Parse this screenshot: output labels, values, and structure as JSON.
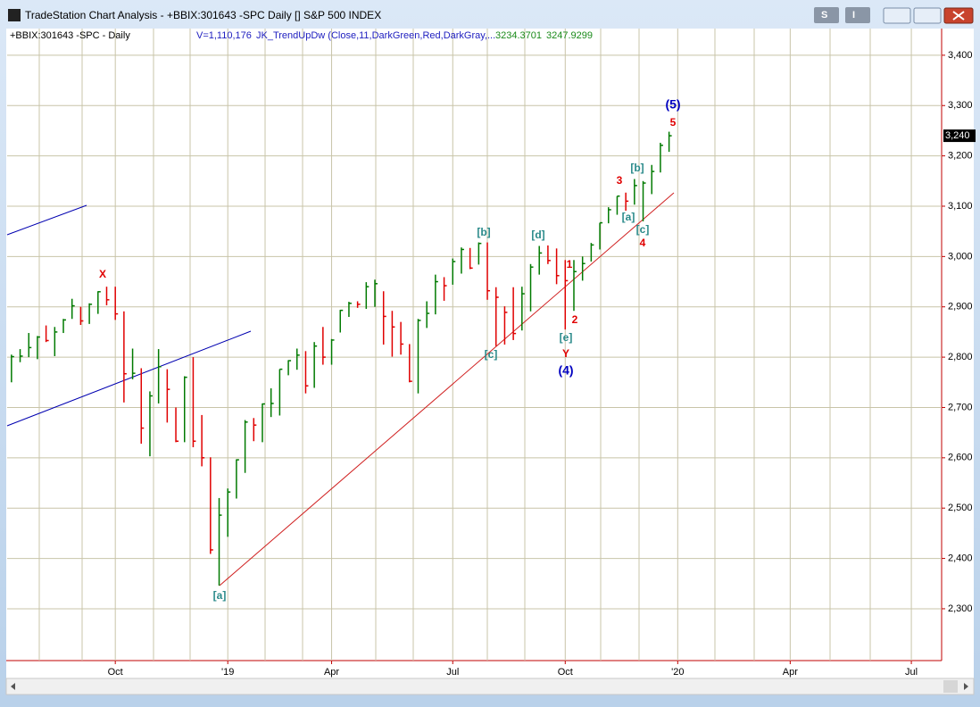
{
  "window": {
    "title": "TradeStation Chart Analysis - +BBIX:301643 -SPC Daily [] S&P 500 INDEX",
    "buttons": [
      "S",
      "I"
    ]
  },
  "chart_data": {
    "type": "hlc",
    "symbol_label": "+BBIX:301643 -SPC - Daily",
    "volume_label": "V=1,110,176",
    "indicator": "JK_TrendUpDw (Close,11,DarkGreen,Red,DarkGray,...",
    "indicator_values": [
      "3234.3701",
      "3247.9299"
    ],
    "up_color": "#007a00",
    "down_color": "#e00000",
    "categories": [
      null,
      null,
      null,
      null,
      null,
      null,
      null,
      null,
      null,
      null,
      null,
      null,
      "Oct",
      null,
      null,
      null,
      null,
      null,
      null,
      null,
      null,
      null,
      null,
      null,
      null,
      "'19",
      null,
      null,
      null,
      null,
      null,
      null,
      null,
      null,
      null,
      null,
      null,
      "Apr",
      null,
      null,
      null,
      null,
      null,
      null,
      null,
      null,
      null,
      null,
      null,
      null,
      null,
      "Jul",
      null,
      null,
      null,
      null,
      null,
      null,
      null,
      null,
      null,
      null,
      null,
      null,
      "Oct",
      null,
      null,
      null,
      null,
      null,
      null,
      null,
      null,
      null,
      null,
      null,
      null,
      "'20",
      null,
      null,
      null,
      null,
      null,
      null,
      null,
      null,
      null,
      null,
      null,
      null,
      "Apr",
      null,
      null,
      null,
      null,
      null,
      null,
      null,
      null,
      null,
      null,
      null,
      null,
      null,
      "Jul",
      null,
      null,
      null
    ],
    "close": [
      2801,
      2802,
      2819,
      2840,
      2833,
      2850,
      2874,
      2902,
      2872,
      2905,
      2930,
      2914,
      2886,
      2767,
      2768,
      2659,
      2723,
      2781,
      2736,
      2633,
      2760,
      2633,
      2600,
      2417,
      2486,
      2532,
      2596,
      2671,
      2665,
      2707,
      2708,
      2776,
      2793,
      2804,
      2743,
      2822,
      2800,
      2834,
      2893,
      2907,
      2905,
      2940,
      2946,
      2881,
      2860,
      2826,
      2752,
      2873,
      2887,
      2950,
      2942,
      2990,
      3014,
      2977,
      3026,
      2932,
      2919,
      2889,
      2847,
      2926,
      2979,
      3007,
      2992,
      2962,
      2952,
      2970,
      2986,
      3023,
      3067,
      3093,
      3120,
      3110,
      3141,
      3146,
      3169,
      3221,
      3240,
      null,
      null,
      null,
      null,
      null,
      null,
      null,
      null,
      null,
      null,
      null,
      null,
      null,
      null,
      null,
      null,
      null,
      null,
      null,
      null,
      null,
      null,
      null,
      null,
      null,
      null,
      null,
      null,
      null,
      null,
      null
    ],
    "high": [
      2805,
      2816,
      2848,
      2842,
      2863,
      2860,
      2876,
      2916,
      2900,
      2907,
      2931,
      2940,
      2940,
      2891,
      2817,
      2778,
      2732,
      2816,
      2776,
      2700,
      2762,
      2800,
      2685,
      2601,
      2520,
      2539,
      2597,
      2675,
      2679,
      2708,
      2738,
      2776,
      2794,
      2817,
      2812,
      2830,
      2860,
      2836,
      2894,
      2910,
      2911,
      2949,
      2954,
      2931,
      2892,
      2870,
      2826,
      2876,
      2911,
      2964,
      2959,
      2996,
      3018,
      3017,
      3028,
      3028,
      2939,
      2901,
      2939,
      2940,
      2985,
      3021,
      3022,
      3016,
      2993,
      2993,
      3000,
      3027,
      3067,
      3098,
      3120,
      3127,
      3154,
      3150,
      3182,
      3226,
      3248,
      null,
      null,
      null,
      null,
      null,
      null,
      null,
      null,
      null,
      null,
      null,
      null,
      null,
      null,
      null,
      null,
      null,
      null,
      null,
      null,
      null,
      null,
      null,
      null,
      null,
      null,
      null,
      null,
      null,
      null,
      null
    ],
    "low": [
      2750,
      2790,
      2800,
      2796,
      2830,
      2802,
      2848,
      2876,
      2864,
      2866,
      2886,
      2903,
      2874,
      2710,
      2756,
      2628,
      2603,
      2708,
      2670,
      2631,
      2631,
      2621,
      2583,
      2409,
      2346,
      2443,
      2519,
      2570,
      2633,
      2631,
      2681,
      2684,
      2764,
      2775,
      2728,
      2739,
      2785,
      2785,
      2849,
      2880,
      2898,
      2896,
      2900,
      2825,
      2801,
      2805,
      2750,
      2728,
      2858,
      2885,
      2912,
      2944,
      2966,
      2975,
      2984,
      2914,
      2822,
      2825,
      2834,
      2853,
      2891,
      2964,
      2985,
      2945,
      2855,
      2892,
      2952,
      2990,
      3014,
      3066,
      3083,
      3091,
      3103,
      3070,
      3124,
      3167,
      3208,
      null,
      null,
      null,
      null,
      null,
      null,
      null,
      null,
      null,
      null,
      null,
      null,
      null,
      null,
      null,
      null,
      null,
      null,
      null,
      null,
      null,
      null,
      null,
      null,
      null,
      null,
      null,
      null,
      null,
      null,
      null
    ],
    "ylim": [
      2197,
      3453
    ],
    "yticks": [
      {
        "value": 2300,
        "label": "2,300"
      },
      {
        "value": 2400,
        "label": "2,400"
      },
      {
        "value": 2500,
        "label": "2,500"
      },
      {
        "value": 2600,
        "label": "2,600"
      },
      {
        "value": 2700,
        "label": "2,700"
      },
      {
        "value": 2800,
        "label": "2,800"
      },
      {
        "value": 2900,
        "label": "2,900"
      },
      {
        "value": 3000,
        "label": "3,000"
      },
      {
        "value": 3100,
        "label": "3,100"
      },
      {
        "value": 3200,
        "label": "3,200"
      },
      {
        "value": 3300,
        "label": "3,300"
      },
      {
        "value": 3400,
        "label": "3,400"
      }
    ],
    "last_price": {
      "value": 3240,
      "label": "3,240"
    },
    "grid": true,
    "annotations": [
      {
        "text": "X",
        "color": "#e00000"
      },
      {
        "text": "[a]",
        "color": "#2a8a8a"
      },
      {
        "text": "[b]",
        "color": "#2a8a8a"
      },
      {
        "text": "[c]",
        "color": "#2a8a8a"
      },
      {
        "text": "[d]",
        "color": "#2a8a8a"
      },
      {
        "text": "1",
        "color": "#e00000"
      },
      {
        "text": "2",
        "color": "#e00000"
      },
      {
        "text": "[e]",
        "color": "#2a8a8a"
      },
      {
        "text": "Y",
        "color": "#e00000"
      },
      {
        "text": "(4)",
        "color": "#0000c0"
      },
      {
        "text": "3",
        "color": "#e00000"
      },
      {
        "text": "[a]",
        "color": "#2a8a8a"
      },
      {
        "text": "[b]",
        "color": "#2a8a8a"
      },
      {
        "text": "[c]",
        "color": "#2a8a8a"
      },
      {
        "text": "4",
        "color": "#e00000"
      },
      {
        "text": "5",
        "color": "#e00000"
      },
      {
        "text": "(5)",
        "color": "#0000c0"
      }
    ]
  }
}
